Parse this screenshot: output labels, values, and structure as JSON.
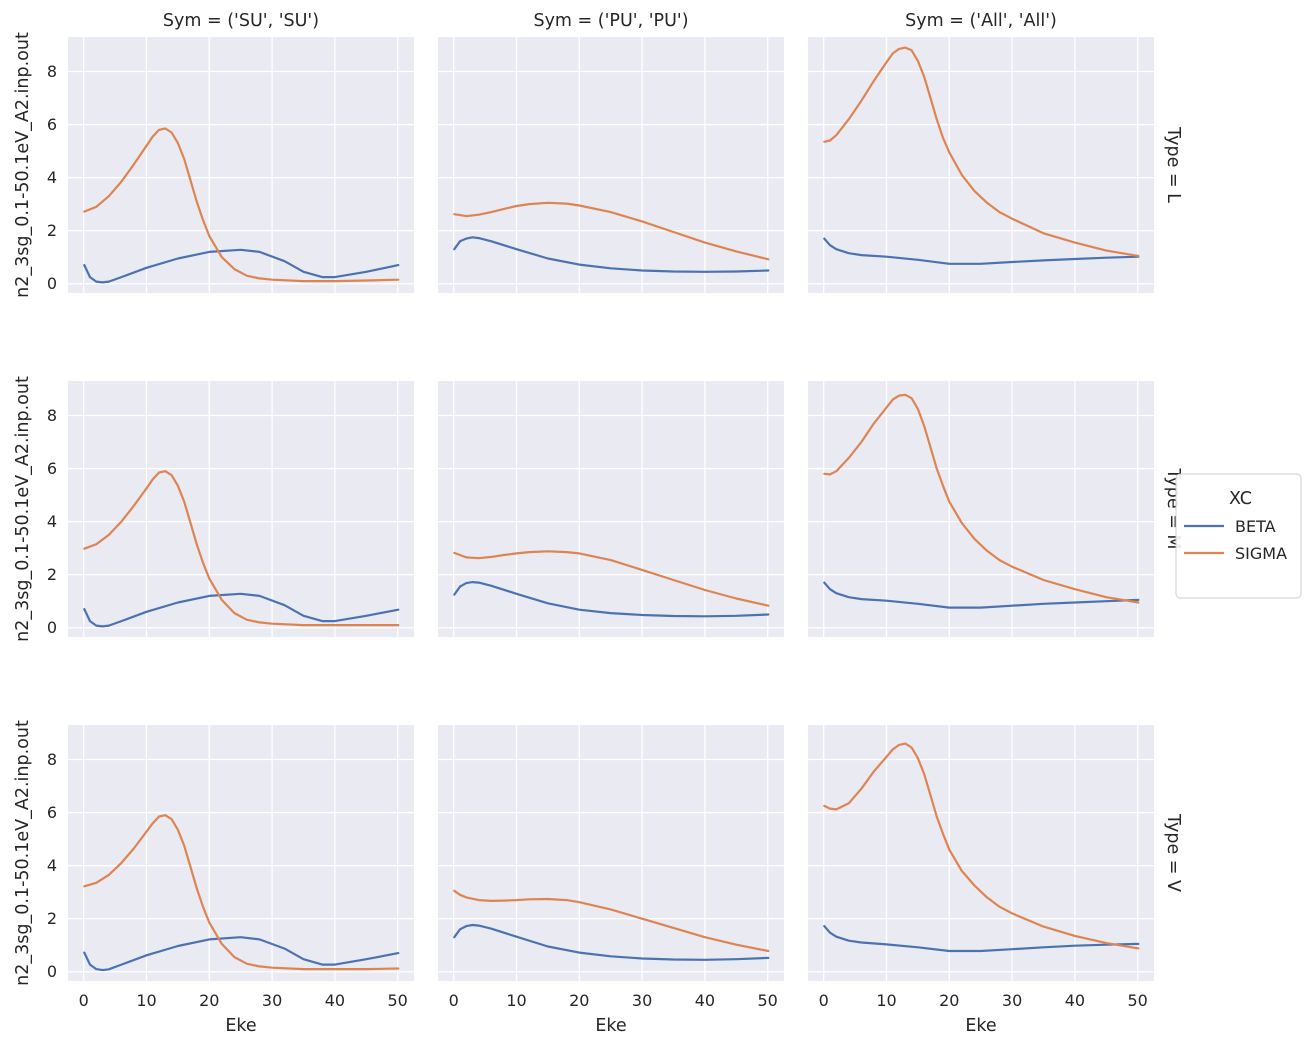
{
  "chart_data": {
    "type": "line",
    "layout": "facet-grid",
    "xlabel": "Eke",
    "ylabel": "n2_3sg_0.1-50.1eV_A2.inp.out",
    "xlim": [
      -2.5,
      52.6
    ],
    "ylim": [
      -0.35,
      9.3
    ],
    "xticks": [
      0,
      10,
      20,
      30,
      40,
      50
    ],
    "yticks": [
      0,
      2,
      4,
      6,
      8
    ],
    "columns": [
      "Sym = ('SU', 'SU')",
      "Sym = ('PU', 'PU')",
      "Sym = ('All', 'All')"
    ],
    "rows": [
      "Type = L",
      "Type = M",
      "Type = V"
    ],
    "legend": {
      "title": "XC",
      "position": "right",
      "entries": [
        {
          "name": "BETA",
          "color": "#4c72b0"
        },
        {
          "name": "SIGMA",
          "color": "#dd8452"
        }
      ]
    },
    "grid": true,
    "panels": [
      {
        "row": "Type = L",
        "col": "Sym = ('SU', 'SU')",
        "series": [
          {
            "name": "BETA",
            "x": [
              0.1,
              1,
              2,
              3,
              4,
              6,
              10,
              15,
              20,
              25,
              28,
              32,
              35,
              38,
              40,
              45,
              50.1
            ],
            "y": [
              0.7,
              0.25,
              0.08,
              0.05,
              0.08,
              0.25,
              0.6,
              0.95,
              1.2,
              1.28,
              1.2,
              0.85,
              0.45,
              0.25,
              0.25,
              0.45,
              0.7
            ]
          },
          {
            "name": "SIGMA",
            "x": [
              0.1,
              2,
              4,
              6,
              8,
              10,
              11,
              12,
              13,
              14,
              15,
              16,
              17,
              18,
              19,
              20,
              22,
              24,
              26,
              28,
              30,
              35,
              40,
              45,
              50.1
            ],
            "y": [
              2.72,
              2.9,
              3.3,
              3.85,
              4.5,
              5.2,
              5.55,
              5.8,
              5.85,
              5.7,
              5.3,
              4.7,
              3.9,
              3.1,
              2.4,
              1.8,
              1.0,
              0.55,
              0.3,
              0.2,
              0.15,
              0.1,
              0.1,
              0.12,
              0.15
            ]
          }
        ]
      },
      {
        "row": "Type = L",
        "col": "Sym = ('PU', 'PU')",
        "series": [
          {
            "name": "BETA",
            "x": [
              0.1,
              1,
              2,
              3,
              4,
              6,
              10,
              15,
              20,
              25,
              30,
              35,
              40,
              45,
              50.1
            ],
            "y": [
              1.3,
              1.6,
              1.7,
              1.75,
              1.72,
              1.6,
              1.3,
              0.95,
              0.72,
              0.58,
              0.5,
              0.46,
              0.45,
              0.46,
              0.5
            ]
          },
          {
            "name": "SIGMA",
            "x": [
              0.1,
              2,
              4,
              6,
              8,
              10,
              12,
              15,
              18,
              20,
              25,
              30,
              35,
              40,
              45,
              50.1
            ],
            "y": [
              2.62,
              2.55,
              2.6,
              2.7,
              2.82,
              2.93,
              3.0,
              3.05,
              3.02,
              2.95,
              2.7,
              2.35,
              1.95,
              1.55,
              1.22,
              0.92
            ]
          }
        ]
      },
      {
        "row": "Type = L",
        "col": "Sym = ('All', 'All')",
        "series": [
          {
            "name": "BETA",
            "x": [
              0.1,
              1,
              2,
              4,
              6,
              10,
              15,
              20,
              25,
              30,
              35,
              40,
              45,
              50.1
            ],
            "y": [
              1.7,
              1.45,
              1.3,
              1.15,
              1.08,
              1.02,
              0.9,
              0.75,
              0.75,
              0.82,
              0.88,
              0.93,
              0.98,
              1.02
            ]
          },
          {
            "name": "SIGMA",
            "x": [
              0.1,
              1,
              2,
              4,
              6,
              8,
              10,
              11,
              12,
              13,
              14,
              15,
              16,
              17,
              18,
              19,
              20,
              22,
              24,
              26,
              28,
              30,
              35,
              40,
              45,
              50.1
            ],
            "y": [
              5.35,
              5.4,
              5.6,
              6.2,
              6.9,
              7.65,
              8.35,
              8.68,
              8.85,
              8.9,
              8.8,
              8.4,
              7.8,
              7.0,
              6.2,
              5.5,
              4.95,
              4.1,
              3.5,
              3.05,
              2.7,
              2.45,
              1.9,
              1.55,
              1.25,
              1.05
            ]
          }
        ]
      },
      {
        "row": "Type = M",
        "col": "Sym = ('SU', 'SU')",
        "series": [
          {
            "name": "BETA",
            "x": [
              0.1,
              1,
              2,
              3,
              4,
              6,
              10,
              15,
              20,
              25,
              28,
              32,
              35,
              38,
              40,
              45,
              50.1
            ],
            "y": [
              0.7,
              0.25,
              0.08,
              0.05,
              0.08,
              0.25,
              0.6,
              0.95,
              1.2,
              1.28,
              1.2,
              0.85,
              0.45,
              0.25,
              0.25,
              0.45,
              0.68
            ]
          },
          {
            "name": "SIGMA",
            "x": [
              0.1,
              2,
              4,
              6,
              8,
              10,
              11,
              12,
              13,
              14,
              15,
              16,
              17,
              18,
              19,
              20,
              22,
              24,
              26,
              28,
              30,
              35,
              40,
              45,
              50.1
            ],
            "y": [
              2.98,
              3.15,
              3.5,
              4.0,
              4.6,
              5.25,
              5.6,
              5.85,
              5.9,
              5.75,
              5.35,
              4.75,
              3.95,
              3.15,
              2.45,
              1.85,
              1.05,
              0.55,
              0.3,
              0.2,
              0.15,
              0.1,
              0.1,
              0.1,
              0.1
            ]
          }
        ]
      },
      {
        "row": "Type = M",
        "col": "Sym = ('PU', 'PU')",
        "series": [
          {
            "name": "BETA",
            "x": [
              0.1,
              1,
              2,
              3,
              4,
              6,
              10,
              15,
              20,
              25,
              30,
              35,
              40,
              45,
              50.1
            ],
            "y": [
              1.25,
              1.55,
              1.68,
              1.72,
              1.7,
              1.58,
              1.28,
              0.92,
              0.68,
              0.55,
              0.48,
              0.44,
              0.43,
              0.45,
              0.5
            ]
          },
          {
            "name": "SIGMA",
            "x": [
              0.1,
              2,
              4,
              6,
              8,
              10,
              12,
              15,
              18,
              20,
              25,
              30,
              35,
              40,
              45,
              50.1
            ],
            "y": [
              2.82,
              2.65,
              2.62,
              2.67,
              2.74,
              2.8,
              2.85,
              2.88,
              2.85,
              2.8,
              2.55,
              2.18,
              1.8,
              1.42,
              1.1,
              0.83
            ]
          }
        ]
      },
      {
        "row": "Type = M",
        "col": "Sym = ('All', 'All')",
        "series": [
          {
            "name": "BETA",
            "x": [
              0.1,
              1,
              2,
              4,
              6,
              10,
              15,
              20,
              25,
              30,
              35,
              40,
              45,
              50.1
            ],
            "y": [
              1.7,
              1.45,
              1.3,
              1.15,
              1.08,
              1.02,
              0.9,
              0.76,
              0.76,
              0.83,
              0.9,
              0.95,
              1.0,
              1.05
            ]
          },
          {
            "name": "SIGMA",
            "x": [
              0.1,
              1,
              2,
              4,
              6,
              8,
              10,
              11,
              12,
              13,
              14,
              15,
              16,
              17,
              18,
              19,
              20,
              22,
              24,
              26,
              28,
              30,
              35,
              40,
              45,
              50.1
            ],
            "y": [
              5.8,
              5.78,
              5.9,
              6.4,
              7.0,
              7.7,
              8.3,
              8.6,
              8.75,
              8.78,
              8.65,
              8.25,
              7.6,
              6.8,
              6.0,
              5.35,
              4.75,
              3.95,
              3.35,
              2.9,
              2.55,
              2.3,
              1.8,
              1.45,
              1.15,
              0.95
            ]
          }
        ]
      },
      {
        "row": "Type = V",
        "col": "Sym = ('SU', 'SU')",
        "series": [
          {
            "name": "BETA",
            "x": [
              0.1,
              1,
              2,
              3,
              4,
              6,
              10,
              15,
              20,
              25,
              28,
              32,
              35,
              38,
              40,
              45,
              50.1
            ],
            "y": [
              0.72,
              0.27,
              0.1,
              0.06,
              0.09,
              0.27,
              0.62,
              0.97,
              1.22,
              1.3,
              1.22,
              0.87,
              0.47,
              0.27,
              0.27,
              0.47,
              0.7
            ]
          },
          {
            "name": "SIGMA",
            "x": [
              0.1,
              2,
              4,
              6,
              8,
              10,
              11,
              12,
              13,
              14,
              15,
              16,
              17,
              18,
              19,
              20,
              22,
              24,
              26,
              28,
              30,
              35,
              40,
              45,
              50.1
            ],
            "y": [
              3.22,
              3.35,
              3.65,
              4.1,
              4.65,
              5.28,
              5.6,
              5.85,
              5.9,
              5.75,
              5.35,
              4.75,
              3.95,
              3.15,
              2.45,
              1.85,
              1.05,
              0.55,
              0.3,
              0.2,
              0.15,
              0.1,
              0.1,
              0.1,
              0.12
            ]
          }
        ]
      },
      {
        "row": "Type = V",
        "col": "Sym = ('PU', 'PU')",
        "series": [
          {
            "name": "BETA",
            "x": [
              0.1,
              1,
              2,
              3,
              4,
              6,
              10,
              15,
              20,
              25,
              30,
              35,
              40,
              45,
              50.1
            ],
            "y": [
              1.3,
              1.6,
              1.72,
              1.76,
              1.74,
              1.62,
              1.32,
              0.95,
              0.72,
              0.58,
              0.5,
              0.46,
              0.45,
              0.47,
              0.52
            ]
          },
          {
            "name": "SIGMA",
            "x": [
              0.1,
              1,
              2,
              4,
              6,
              8,
              10,
              12,
              15,
              18,
              20,
              25,
              30,
              35,
              40,
              45,
              50.1
            ],
            "y": [
              3.05,
              2.9,
              2.8,
              2.7,
              2.67,
              2.68,
              2.7,
              2.73,
              2.74,
              2.7,
              2.62,
              2.35,
              2.0,
              1.65,
              1.3,
              1.02,
              0.78
            ]
          }
        ]
      },
      {
        "row": "Type = V",
        "col": "Sym = ('All', 'All')",
        "series": [
          {
            "name": "BETA",
            "x": [
              0.1,
              1,
              2,
              4,
              6,
              10,
              15,
              20,
              25,
              30,
              35,
              40,
              45,
              50.1
            ],
            "y": [
              1.72,
              1.47,
              1.32,
              1.17,
              1.1,
              1.03,
              0.92,
              0.78,
              0.78,
              0.85,
              0.92,
              0.98,
              1.02,
              1.05
            ]
          },
          {
            "name": "SIGMA",
            "x": [
              0.1,
              1,
              2,
              4,
              6,
              8,
              10,
              11,
              12,
              13,
              14,
              15,
              16,
              17,
              18,
              19,
              20,
              22,
              24,
              26,
              28,
              30,
              35,
              40,
              45,
              50.1
            ],
            "y": [
              6.25,
              6.15,
              6.12,
              6.35,
              6.9,
              7.55,
              8.1,
              8.38,
              8.55,
              8.6,
              8.45,
              8.05,
              7.45,
              6.65,
              5.85,
              5.2,
              4.6,
              3.8,
              3.25,
              2.8,
              2.45,
              2.2,
              1.7,
              1.35,
              1.08,
              0.88
            ]
          }
        ]
      }
    ]
  }
}
